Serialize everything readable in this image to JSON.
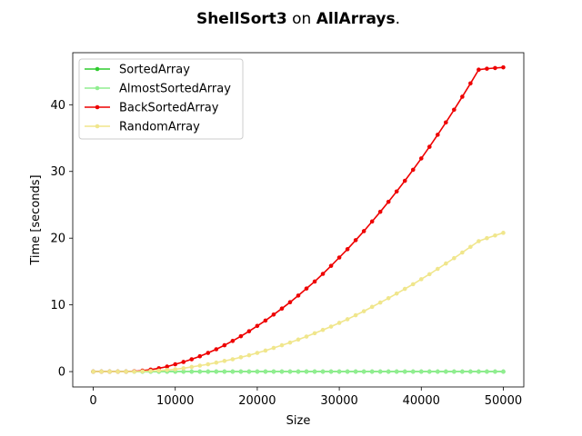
{
  "chart_data": {
    "type": "line",
    "title": {
      "algorithm": "ShellSort3",
      "joiner": "on",
      "dataset": "AllArrays",
      "end": "."
    },
    "xlabel": "Size",
    "ylabel": "Time [seconds]",
    "xlim": [
      -2500,
      52500
    ],
    "ylim": [
      -2.3,
      47.8
    ],
    "xticks": [
      0,
      10000,
      20000,
      30000,
      40000,
      50000
    ],
    "yticks": [
      0,
      10,
      20,
      30,
      40
    ],
    "grid": false,
    "legend_position": "top-left",
    "x": [
      0,
      1000,
      2000,
      3000,
      4000,
      5000,
      6000,
      7000,
      8000,
      9000,
      10000,
      11000,
      12000,
      13000,
      14000,
      15000,
      16000,
      17000,
      18000,
      19000,
      20000,
      21000,
      22000,
      23000,
      24000,
      25000,
      26000,
      27000,
      28000,
      29000,
      30000,
      31000,
      32000,
      33000,
      34000,
      35000,
      36000,
      37000,
      38000,
      39000,
      40000,
      41000,
      42000,
      43000,
      44000,
      45000,
      46000,
      47000,
      48000,
      49000,
      50000
    ],
    "series": [
      {
        "name": "SortedArray",
        "color": "#2ecc2e",
        "values": [
          0,
          0,
          0,
          0,
          0,
          0,
          0,
          0,
          0,
          0,
          0,
          0,
          0,
          0,
          0,
          0,
          0,
          0,
          0,
          0,
          0,
          0,
          0,
          0,
          0,
          0,
          0,
          0,
          0,
          0,
          0,
          0,
          0,
          0,
          0,
          0,
          0,
          0,
          0,
          0,
          0,
          0,
          0,
          0,
          0,
          0,
          0,
          0,
          0,
          0,
          0
        ]
      },
      {
        "name": "AlmostSortedArray",
        "color": "#90ee90",
        "values": [
          0,
          0,
          0,
          0,
          0,
          0,
          0,
          0,
          0,
          0,
          0,
          0,
          0,
          0,
          0,
          0,
          0,
          0,
          0,
          0,
          0,
          0,
          0,
          0,
          0,
          0,
          0,
          0,
          0,
          0,
          0,
          0,
          0,
          0,
          0,
          0,
          0,
          0,
          0,
          0,
          0,
          0,
          0,
          0,
          0,
          0,
          0,
          0,
          0,
          0,
          0
        ]
      },
      {
        "name": "BackSortedArray",
        "color": "#ee0000",
        "values": [
          0,
          0,
          0,
          0,
          0,
          0.05,
          0.15,
          0.3,
          0.5,
          0.75,
          1.1,
          1.45,
          1.85,
          2.3,
          2.8,
          3.35,
          3.95,
          4.6,
          5.3,
          6.05,
          6.85,
          7.65,
          8.55,
          9.45,
          10.4,
          11.4,
          12.45,
          13.5,
          14.65,
          15.85,
          17.1,
          18.35,
          19.7,
          21.05,
          22.5,
          23.95,
          25.45,
          27.0,
          28.6,
          30.25,
          31.95,
          33.7,
          35.5,
          37.35,
          39.25,
          41.2,
          43.2,
          45.25,
          45.4,
          45.5,
          45.6
        ]
      },
      {
        "name": "RandomArray",
        "color": "#f0e68c",
        "values": [
          0,
          0,
          0,
          0,
          0,
          0,
          0.05,
          0.1,
          0.15,
          0.25,
          0.35,
          0.5,
          0.7,
          0.9,
          1.1,
          1.35,
          1.6,
          1.85,
          2.15,
          2.45,
          2.8,
          3.15,
          3.55,
          3.95,
          4.35,
          4.8,
          5.25,
          5.75,
          6.25,
          6.75,
          7.3,
          7.85,
          8.45,
          9.05,
          9.7,
          10.35,
          11.0,
          11.7,
          12.4,
          13.1,
          13.85,
          14.6,
          15.4,
          16.2,
          17.0,
          17.85,
          18.7,
          19.55,
          20.0,
          20.4,
          20.8
        ]
      }
    ]
  }
}
